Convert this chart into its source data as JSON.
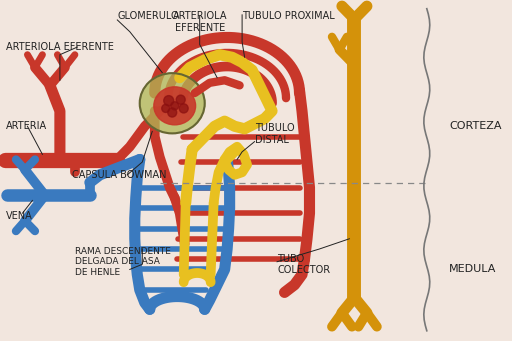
{
  "background_color": "#f2e6de",
  "labels": {
    "glomerulo": "GLOMERULO",
    "arteriola_eferente_top": "ARTERIOLA\nEFERENTE",
    "arteriola_eferente_left": "ARTERIOLA EFERENTE",
    "tubulo_proximal": "TUBULO PROXIMAL",
    "arteria": "ARTERIA",
    "capsula_bowman": "CAPSULA BOWMAN",
    "vena": "VENA",
    "tubulo_distal": "TUBULO\nDISTAL",
    "rama_descendente": "RAMA DESCENDENTE\nDELGADA DEL ASA\nDE HENLE",
    "tubo_colector": "TUBO\nCOLECTOR",
    "corteza": "CORTEZA",
    "medula": "MEDULA"
  },
  "colors": {
    "red": "#c8372a",
    "blue": "#3a7abf",
    "yellow": "#e8c020",
    "orange_yellow": "#d4920a",
    "olive": "#8a9040",
    "olive_light": "#b0b855",
    "background": "#f2e6de",
    "text_color": "#222222",
    "line_thin": "#444444"
  },
  "font_size": 7.0,
  "lw_thick": 9,
  "lw_med": 7,
  "lw_thin": 5
}
